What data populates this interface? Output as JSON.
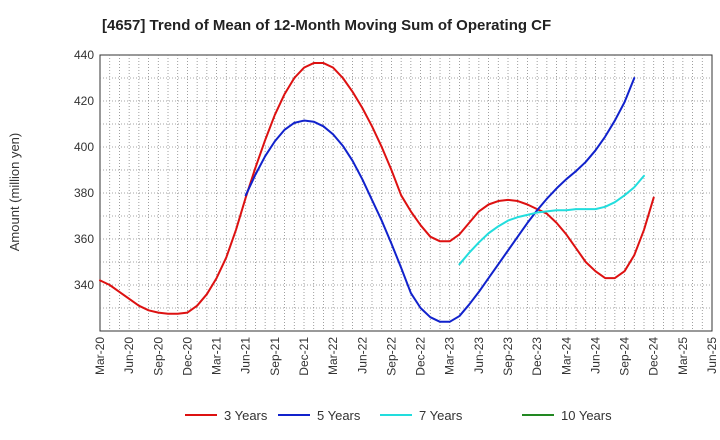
{
  "chart_data": {
    "type": "line",
    "title": "[4657]  Trend of Mean of 12-Month Moving Sum of Operating CF",
    "xlabel": "",
    "ylabel": "Amount (million yen)",
    "ylim": [
      320,
      440
    ],
    "yticks": [
      340,
      360,
      380,
      400,
      420,
      440
    ],
    "xticks": [
      "Mar-20",
      "Jun-20",
      "Sep-20",
      "Dec-20",
      "Mar-21",
      "Jun-21",
      "Sep-21",
      "Dec-21",
      "Mar-22",
      "Jun-22",
      "Sep-22",
      "Dec-22",
      "Mar-23",
      "Jun-23",
      "Sep-23",
      "Dec-23",
      "Mar-24",
      "Jun-24",
      "Sep-24",
      "Dec-24",
      "Mar-25",
      "Jun-25"
    ],
    "grid": true,
    "legend_position": "bottom",
    "series": [
      {
        "name": "3 Years",
        "color": "#dd1111",
        "start_index": 0,
        "values": [
          342,
          340,
          337,
          334,
          331,
          329,
          328,
          327.5,
          327.5,
          328,
          331,
          336,
          343,
          352,
          364,
          378,
          391,
          403,
          414,
          423,
          430,
          434.5,
          436.5,
          436.5,
          434.5,
          430,
          424,
          417,
          409,
          400,
          390,
          379,
          372,
          366,
          361,
          359,
          359,
          362,
          367,
          372,
          375,
          376.5,
          377,
          376.5,
          375,
          373,
          371,
          367,
          362,
          356,
          350,
          346,
          343,
          343,
          346,
          353,
          364,
          378
        ]
      },
      {
        "name": "5 Years",
        "color": "#1122cc",
        "start_index": 15,
        "values": [
          379,
          388,
          396,
          402.5,
          407.5,
          410.5,
          411.5,
          411,
          409,
          405.5,
          400.5,
          394,
          386,
          377,
          368,
          358,
          347.5,
          336.5,
          330,
          326,
          324,
          324,
          326.5,
          331.5,
          337,
          343,
          349,
          355,
          361,
          367,
          372.5,
          377.5,
          382,
          386,
          389.5,
          393.5,
          398.5,
          404.5,
          411.5,
          419.5,
          430
        ]
      },
      {
        "name": "7 Years",
        "color": "#22dddd",
        "start_index": 37,
        "values": [
          349,
          354,
          358.5,
          362.5,
          365.5,
          368,
          369.5,
          370.5,
          371.5,
          372,
          372.5,
          372.5,
          373,
          373,
          373,
          374,
          376,
          379,
          382.5,
          387.5
        ]
      },
      {
        "name": "10 Years",
        "color": "#228822",
        "start_index": 0,
        "values": []
      }
    ]
  }
}
